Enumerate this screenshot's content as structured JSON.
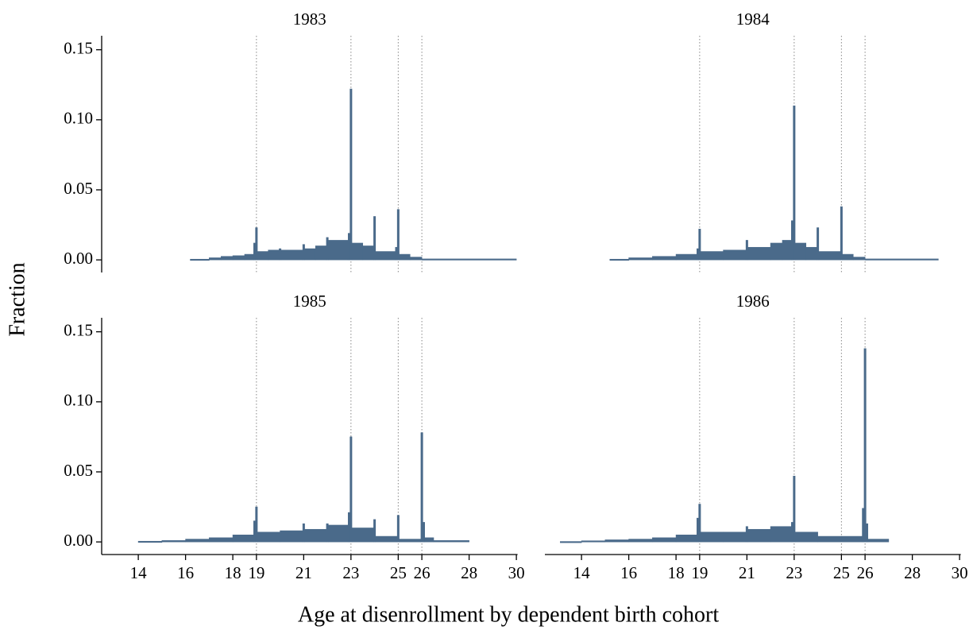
{
  "figure": {
    "x_label": "Age at disenrollment by dependent birth cohort",
    "y_label": "Fraction"
  },
  "chart_data": [
    {
      "type": "histogram",
      "title": "1983",
      "color": "#4a6a8a",
      "xlim": [
        12.45,
        30.05
      ],
      "ylim": [
        -0.009,
        0.16
      ],
      "vlines": [
        19,
        23,
        25,
        26
      ],
      "yticks": [
        {
          "value": 0,
          "label": "0.00"
        },
        {
          "value": 0.05,
          "label": "0.05"
        },
        {
          "value": 0.1,
          "label": "0.10"
        },
        {
          "value": 0.15,
          "label": "0.15"
        }
      ],
      "bins": [
        16.2,
        17,
        17.5,
        18,
        18.5,
        18.88,
        18.96,
        19.04,
        19.5,
        19.96,
        20.04,
        20.96,
        21.04,
        21.5,
        21.96,
        22.04,
        22.88,
        22.96,
        23.04,
        23.5,
        23.96,
        24.04,
        24.88,
        24.96,
        25.04,
        25.5,
        26,
        30
      ],
      "values": [
        0.0005,
        0.0015,
        0.0025,
        0.003,
        0.004,
        0.012,
        0.023,
        0.006,
        0.007,
        0.008,
        0.007,
        0.011,
        0.008,
        0.01,
        0.016,
        0.014,
        0.019,
        0.122,
        0.012,
        0.01,
        0.031,
        0.006,
        0.009,
        0.036,
        0.004,
        0.002,
        0.0007
      ]
    },
    {
      "type": "histogram",
      "title": "1984",
      "color": "#4a6a8a",
      "xlim": [
        12.45,
        30.05
      ],
      "ylim": [
        -0.009,
        0.16
      ],
      "vlines": [
        19,
        23,
        25,
        26
      ],
      "bins": [
        15.2,
        16,
        17,
        18,
        18.88,
        18.96,
        19.04,
        20,
        20.96,
        21.04,
        22,
        22.5,
        22.88,
        22.96,
        23.04,
        23.5,
        23.96,
        24.04,
        24.96,
        25.04,
        25.5,
        26,
        29.1
      ],
      "values": [
        0.0005,
        0.0015,
        0.0025,
        0.004,
        0.008,
        0.022,
        0.006,
        0.007,
        0.014,
        0.009,
        0.012,
        0.014,
        0.028,
        0.11,
        0.012,
        0.009,
        0.023,
        0.006,
        0.038,
        0.004,
        0.002,
        0.0007
      ]
    },
    {
      "type": "histogram",
      "title": "1985",
      "color": "#4a6a8a",
      "xlim": [
        12.45,
        30.05
      ],
      "ylim": [
        -0.009,
        0.16
      ],
      "vlines": [
        19,
        23,
        25,
        26
      ],
      "yticks": [
        {
          "value": 0,
          "label": "0.00"
        },
        {
          "value": 0.05,
          "label": "0.05"
        },
        {
          "value": 0.1,
          "label": "0.10"
        },
        {
          "value": 0.15,
          "label": "0.15"
        }
      ],
      "xticks": [
        14,
        16,
        18,
        19,
        21,
        23,
        25,
        26,
        28,
        30
      ],
      "bins": [
        14,
        15,
        16,
        17,
        18,
        18.88,
        18.96,
        19.04,
        20,
        20.96,
        21.04,
        21.96,
        22.04,
        22.88,
        22.96,
        23.04,
        23.96,
        24.04,
        24.96,
        25.04,
        25.96,
        26.04,
        26.12,
        26.5,
        28
      ],
      "values": [
        0.0005,
        0.001,
        0.002,
        0.003,
        0.005,
        0.015,
        0.025,
        0.007,
        0.008,
        0.013,
        0.009,
        0.013,
        0.012,
        0.021,
        0.075,
        0.01,
        0.016,
        0.004,
        0.019,
        0.002,
        0.078,
        0.014,
        0.003,
        0.001
      ]
    },
    {
      "type": "histogram",
      "title": "1986",
      "color": "#4a6a8a",
      "xlim": [
        12.45,
        30.05
      ],
      "ylim": [
        -0.009,
        0.16
      ],
      "vlines": [
        19,
        23,
        25,
        26
      ],
      "xticks": [
        14,
        16,
        18,
        19,
        21,
        23,
        25,
        26,
        28,
        30
      ],
      "bins": [
        13.1,
        14,
        15,
        16,
        17,
        18,
        18.88,
        18.96,
        19.04,
        20,
        20.96,
        21.04,
        22,
        22.88,
        22.96,
        23.04,
        24,
        25,
        25.88,
        25.96,
        26.04,
        26.12,
        27
      ],
      "values": [
        0.0003,
        0.0008,
        0.0015,
        0.002,
        0.003,
        0.005,
        0.017,
        0.027,
        0.007,
        0.007,
        0.011,
        0.009,
        0.011,
        0.014,
        0.047,
        0.007,
        0.004,
        0.004,
        0.024,
        0.138,
        0.013,
        0.002
      ]
    }
  ]
}
